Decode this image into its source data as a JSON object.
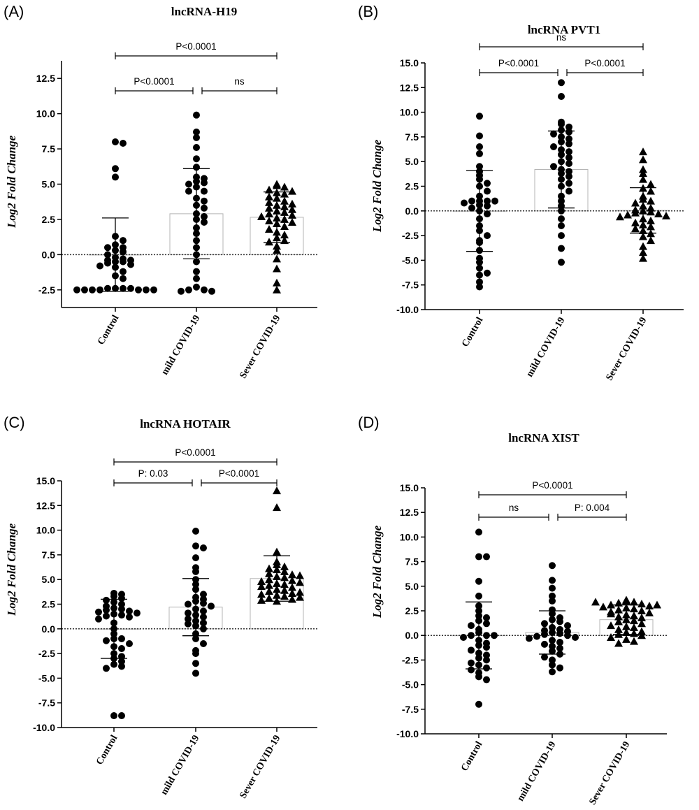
{
  "figure": {
    "panel_count": 4
  },
  "chart_data": [
    {
      "panel_label": "(A)",
      "type": "scatter",
      "title": "lncRNA-H19",
      "ylabel": "Log2 Fold Change",
      "ylim": [
        -3.75,
        13.75
      ],
      "yticks": [
        -2.5,
        0.0,
        2.5,
        5.0,
        7.5,
        10.0,
        12.5
      ],
      "ytick_labels": [
        "-2.5",
        "0.0",
        "2.5",
        "5.0",
        "7.5",
        "10.0",
        "12.5"
      ],
      "categories": [
        "Control",
        "mild COVID-19",
        "Sever COVID-19"
      ],
      "groups": [
        {
          "name": "Control",
          "marker": "circle",
          "mean": 0.0,
          "sd": 2.6,
          "values": [
            8.0,
            7.9,
            6.1,
            5.5,
            1.3,
            1.0,
            0.7,
            0.5,
            0.5,
            0.3,
            0.2,
            0.0,
            -0.2,
            -0.3,
            -0.4,
            -0.4,
            -0.5,
            -0.5,
            -0.6,
            -0.7,
            -0.8,
            -0.9,
            -1.2,
            -1.5,
            -1.7,
            -2.4,
            -2.4,
            -2.4,
            -2.4,
            -2.5,
            -2.5,
            -2.5,
            -2.5,
            -2.5,
            -2.5,
            -2.5
          ]
        },
        {
          "name": "mild COVID-19",
          "marker": "circle",
          "mean": 2.9,
          "sd": 3.2,
          "values": [
            9.9,
            8.7,
            8.3,
            7.6,
            6.8,
            6.2,
            5.5,
            5.4,
            5.2,
            5.1,
            5.0,
            4.8,
            4.5,
            4.5,
            4.0,
            3.8,
            3.5,
            3.3,
            2.9,
            2.7,
            2.5,
            2.3,
            1.9,
            1.5,
            1.0,
            0.5,
            0.0,
            -0.5,
            -1.2,
            -1.7,
            -2.3,
            -2.5,
            -2.5,
            -2.6,
            -2.6
          ]
        },
        {
          "name": "Sever COVID-19",
          "marker": "triangle",
          "mean": 2.65,
          "sd": 1.8,
          "values": [
            5.0,
            4.9,
            4.8,
            4.6,
            4.5,
            4.4,
            4.3,
            4.1,
            4.0,
            3.8,
            3.7,
            3.6,
            3.5,
            3.4,
            3.3,
            3.2,
            3.1,
            3.0,
            2.9,
            2.8,
            2.7,
            2.6,
            2.5,
            2.4,
            2.3,
            2.2,
            2.0,
            1.8,
            1.6,
            1.4,
            1.2,
            1.0,
            0.9,
            0.6,
            0.3,
            -0.3,
            -1.0,
            -2.0,
            -2.5
          ]
        }
      ],
      "significance": [
        {
          "from": 0,
          "to": 1,
          "label": "P<0.0001",
          "level": 0
        },
        {
          "from": 1,
          "to": 2,
          "label": "ns",
          "level": 0
        },
        {
          "from": 0,
          "to": 2,
          "label": "P<0.0001",
          "level": 1
        }
      ]
    },
    {
      "panel_label": "(B)",
      "type": "scatter",
      "title": "lncRNA PVT1",
      "ylabel": "Log2 Fold Change",
      "ylim": [
        -10.0,
        15.0
      ],
      "yticks": [
        -10.0,
        -7.5,
        -5.0,
        -2.5,
        0.0,
        2.5,
        5.0,
        7.5,
        10.0,
        12.5,
        15.0
      ],
      "ytick_labels": [
        "-10.0",
        "-7.5",
        "-5.0",
        "-2.5",
        "0.0",
        "2.5",
        "5.0",
        "7.5",
        "10.0",
        "12.5",
        "15.0"
      ],
      "categories": [
        "Control",
        "mild COVID-19",
        "Sever COVID-19"
      ],
      "groups": [
        {
          "name": "Control",
          "marker": "circle",
          "mean": 0.0,
          "sd": 4.1,
          "values": [
            9.6,
            7.6,
            6.5,
            5.8,
            4.5,
            4.0,
            3.6,
            3.2,
            2.8,
            2.5,
            2.0,
            1.5,
            1.0,
            1.0,
            1.0,
            1.0,
            0.8,
            0.6,
            0.5,
            0.3,
            0.0,
            -0.3,
            -0.8,
            -1.5,
            -2.0,
            -2.5,
            -3.0,
            -3.2,
            -4.0,
            -4.8,
            -5.2,
            -5.8,
            -6.3,
            -6.5,
            -7.2,
            -7.7
          ]
        },
        {
          "name": "mild COVID-19",
          "marker": "circle",
          "mean": 4.2,
          "sd": 3.9,
          "values": [
            13.0,
            11.6,
            9.0,
            8.8,
            8.5,
            8.2,
            8.0,
            7.8,
            7.5,
            7.3,
            7.0,
            6.8,
            6.5,
            6.2,
            6.0,
            5.7,
            5.4,
            5.0,
            4.8,
            4.5,
            4.2,
            4.0,
            3.8,
            3.5,
            3.2,
            2.8,
            2.5,
            2.0,
            1.5,
            1.0,
            0.5,
            0.0,
            -0.8,
            -1.5,
            -2.5,
            -3.8,
            -5.2
          ]
        },
        {
          "name": "Sever COVID-19",
          "marker": "triangle",
          "mean": 0.05,
          "sd": 2.3,
          "values": [
            6.0,
            5.2,
            4.2,
            3.8,
            3.2,
            2.7,
            2.3,
            2.0,
            1.5,
            1.2,
            1.0,
            0.8,
            0.5,
            0.3,
            0.1,
            0.0,
            -0.1,
            -0.2,
            -0.3,
            -0.4,
            -0.5,
            -0.6,
            -0.8,
            -1.0,
            -1.2,
            -1.4,
            -1.6,
            -1.8,
            -2.0,
            -2.3,
            -2.6,
            -3.0,
            -3.6,
            -4.2,
            -4.8
          ]
        }
      ],
      "significance": [
        {
          "from": 0,
          "to": 1,
          "label": "P<0.0001",
          "level": 0
        },
        {
          "from": 1,
          "to": 2,
          "label": "P<0.0001",
          "level": 0
        },
        {
          "from": 0,
          "to": 2,
          "label": "ns",
          "level": 1
        }
      ]
    },
    {
      "panel_label": "(C)",
      "type": "scatter",
      "title": "lncRNA HOTAIR",
      "ylabel": "Log2 Fold Change",
      "ylim": [
        -10.0,
        15.0
      ],
      "yticks": [
        -10.0,
        -7.5,
        -5.0,
        -2.5,
        0.0,
        2.5,
        5.0,
        7.5,
        10.0,
        12.5,
        15.0
      ],
      "ytick_labels": [
        "-10.0",
        "-7.5",
        "-5.0",
        "-2.5",
        "0.0",
        "2.5",
        "5.0",
        "7.5",
        "10.0",
        "12.5",
        "15.0"
      ],
      "categories": [
        "Control",
        "mild COVID-19",
        "Sever COVID-19"
      ],
      "groups": [
        {
          "name": "Control",
          "marker": "circle",
          "mean": 0.0,
          "sd": 3.0,
          "values": [
            3.6,
            3.5,
            3.3,
            3.1,
            2.9,
            2.7,
            2.5,
            2.3,
            2.1,
            2.0,
            1.9,
            1.8,
            1.7,
            1.6,
            1.5,
            1.4,
            1.3,
            1.2,
            1.0,
            0.6,
            0.0,
            -0.5,
            -1.0,
            -1.0,
            -1.2,
            -1.5,
            -1.8,
            -2.0,
            -2.5,
            -2.8,
            -3.0,
            -3.3,
            -3.6,
            -3.8,
            -4.0,
            -8.8,
            -8.8
          ]
        },
        {
          "name": "mild COVID-19",
          "marker": "circle",
          "mean": 2.2,
          "sd": 2.9,
          "values": [
            9.9,
            8.4,
            8.2,
            7.2,
            6.2,
            5.8,
            5.0,
            4.5,
            4.0,
            3.5,
            3.2,
            3.0,
            2.8,
            2.6,
            2.5,
            2.3,
            2.0,
            1.8,
            1.6,
            1.4,
            1.2,
            1.0,
            0.8,
            0.6,
            0.5,
            0.3,
            0.0,
            -0.5,
            -1.0,
            -1.5,
            -2.2,
            -2.5,
            -3.5,
            -4.5
          ]
        },
        {
          "name": "Sever COVID-19",
          "marker": "triangle",
          "mean": 5.1,
          "sd": 2.3,
          "values": [
            14.0,
            12.3,
            7.8,
            6.8,
            6.5,
            6.3,
            6.1,
            6.0,
            5.8,
            5.6,
            5.5,
            5.3,
            5.2,
            5.0,
            4.9,
            4.8,
            4.6,
            4.5,
            4.4,
            4.2,
            4.0,
            3.9,
            3.8,
            3.6,
            3.5,
            3.4,
            3.3,
            3.1,
            3.0,
            2.9,
            2.8,
            3.2,
            4.3,
            5.4,
            4.7,
            3.7
          ]
        }
      ],
      "significance": [
        {
          "from": 0,
          "to": 1,
          "label": "P: 0.03",
          "level": 0
        },
        {
          "from": 1,
          "to": 2,
          "label": "P<0.0001",
          "level": 0
        },
        {
          "from": 0,
          "to": 2,
          "label": "P<0.0001",
          "level": 1
        }
      ]
    },
    {
      "panel_label": "(D)",
      "type": "scatter",
      "title": "lncRNA XIST",
      "ylabel": "Log2 Fold Change",
      "ylim": [
        -10.0,
        15.0
      ],
      "yticks": [
        -10.0,
        -7.5,
        -5.0,
        -2.5,
        0.0,
        2.5,
        5.0,
        7.5,
        10.0,
        12.5,
        15.0
      ],
      "ytick_labels": [
        "-10.0",
        "-7.5",
        "-5.0",
        "-2.5",
        "0.0",
        "2.5",
        "5.0",
        "7.5",
        "10.0",
        "12.5",
        "15.0"
      ],
      "categories": [
        "Control",
        "mild COVID-19",
        "Sever COVID-19"
      ],
      "groups": [
        {
          "name": "Control",
          "marker": "circle",
          "mean": 0.0,
          "sd": 3.4,
          "values": [
            10.5,
            8.0,
            8.0,
            5.5,
            4.0,
            3.0,
            2.5,
            2.0,
            1.8,
            1.5,
            1.2,
            1.0,
            0.6,
            0.3,
            0.0,
            0.0,
            0.0,
            -0.2,
            -0.5,
            -0.8,
            -1.0,
            -1.2,
            -1.5,
            -1.8,
            -2.0,
            -2.3,
            -2.5,
            -2.8,
            -3.0,
            -3.3,
            -3.5,
            -3.8,
            -4.2,
            -4.5,
            -7.0
          ]
        },
        {
          "name": "mild COVID-19",
          "marker": "circle",
          "mean": 0.3,
          "sd": 2.2,
          "values": [
            7.1,
            5.6,
            4.8,
            4.0,
            3.5,
            2.6,
            2.2,
            1.8,
            1.6,
            1.4,
            1.2,
            1.0,
            0.8,
            0.6,
            0.5,
            0.4,
            0.3,
            0.2,
            0.1,
            0.0,
            -0.1,
            -0.2,
            -0.3,
            -0.5,
            -0.7,
            -0.9,
            -1.1,
            -1.3,
            -1.6,
            -1.9,
            -2.2,
            -2.5,
            -3.0,
            -3.3,
            -3.7
          ]
        },
        {
          "name": "Sever COVID-19",
          "marker": "triangle",
          "mean": 1.6,
          "sd": 1.5,
          "values": [
            3.6,
            3.5,
            3.4,
            3.3,
            3.2,
            3.1,
            3.0,
            2.9,
            2.8,
            2.7,
            2.6,
            2.5,
            2.4,
            2.3,
            2.1,
            2.0,
            1.9,
            1.8,
            1.6,
            1.5,
            1.4,
            1.2,
            1.0,
            0.9,
            0.8,
            0.6,
            0.4,
            0.3,
            0.2,
            0.1,
            0.0,
            -0.2,
            -0.4,
            -0.6,
            -0.8,
            3.1,
            3.4,
            2.2
          ]
        }
      ],
      "significance": [
        {
          "from": 0,
          "to": 1,
          "label": "ns",
          "level": 0
        },
        {
          "from": 1,
          "to": 2,
          "label": "P: 0.004",
          "level": 0
        },
        {
          "from": 0,
          "to": 2,
          "label": "P<0.0001",
          "level": 1
        }
      ]
    }
  ]
}
